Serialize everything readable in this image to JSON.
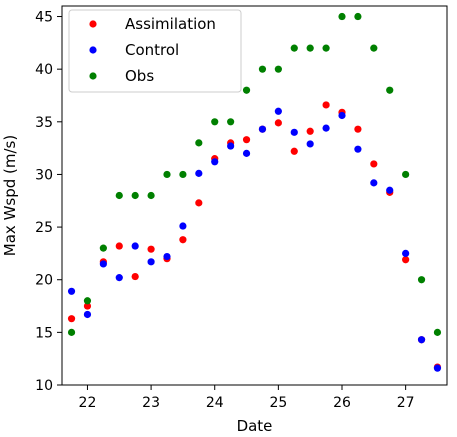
{
  "chart_data": {
    "type": "scatter",
    "title": "",
    "xlabel": "Date",
    "ylabel": "Max Wspd (m/s)",
    "xlim": [
      21.6,
      27.65
    ],
    "ylim": [
      10,
      46
    ],
    "xticks": [
      22,
      23,
      24,
      25,
      26,
      27
    ],
    "yticks": [
      10,
      15,
      20,
      25,
      30,
      35,
      40,
      45
    ],
    "grid": false,
    "legend_position": "top-left",
    "series": [
      {
        "name": "Assimilation",
        "color": "#ff0000",
        "points": [
          [
            21.75,
            16.3
          ],
          [
            22.0,
            17.5
          ],
          [
            22.25,
            21.7
          ],
          [
            22.5,
            23.2
          ],
          [
            22.75,
            20.3
          ],
          [
            23.0,
            22.9
          ],
          [
            23.25,
            22.0
          ],
          [
            23.5,
            23.8
          ],
          [
            23.75,
            27.3
          ],
          [
            24.0,
            31.5
          ],
          [
            24.25,
            33.0
          ],
          [
            24.5,
            33.3
          ],
          [
            24.75,
            34.3
          ],
          [
            25.0,
            34.9
          ],
          [
            25.25,
            32.2
          ],
          [
            25.5,
            34.1
          ],
          [
            25.75,
            36.6
          ],
          [
            26.0,
            35.9
          ],
          [
            26.25,
            34.3
          ],
          [
            26.5,
            31.0
          ],
          [
            26.75,
            28.3
          ],
          [
            27.0,
            21.9
          ],
          [
            27.25,
            14.3
          ],
          [
            27.5,
            11.7
          ]
        ]
      },
      {
        "name": "Control",
        "color": "#0000ff",
        "points": [
          [
            21.75,
            18.9
          ],
          [
            22.0,
            16.7
          ],
          [
            22.25,
            21.5
          ],
          [
            22.5,
            20.2
          ],
          [
            22.75,
            23.2
          ],
          [
            23.0,
            21.7
          ],
          [
            23.25,
            22.2
          ],
          [
            23.5,
            25.1
          ],
          [
            23.75,
            30.1
          ],
          [
            24.0,
            31.2
          ],
          [
            24.25,
            32.7
          ],
          [
            24.5,
            32.0
          ],
          [
            24.75,
            34.3
          ],
          [
            25.0,
            36.0
          ],
          [
            25.25,
            34.0
          ],
          [
            25.5,
            32.9
          ],
          [
            25.75,
            34.4
          ],
          [
            26.0,
            35.6
          ],
          [
            26.25,
            32.4
          ],
          [
            26.5,
            29.2
          ],
          [
            26.75,
            28.5
          ],
          [
            27.0,
            22.5
          ],
          [
            27.25,
            14.3
          ],
          [
            27.5,
            11.6
          ]
        ]
      },
      {
        "name": "Obs",
        "color": "#008000",
        "points": [
          [
            21.75,
            15.0
          ],
          [
            22.0,
            18.0
          ],
          [
            22.25,
            23.0
          ],
          [
            22.5,
            28.0
          ],
          [
            22.75,
            28.0
          ],
          [
            23.0,
            28.0
          ],
          [
            23.25,
            30.0
          ],
          [
            23.5,
            30.0
          ],
          [
            23.75,
            33.0
          ],
          [
            24.0,
            35.0
          ],
          [
            24.25,
            35.0
          ],
          [
            24.5,
            38.0
          ],
          [
            24.75,
            40.0
          ],
          [
            25.0,
            40.0
          ],
          [
            25.25,
            42.0
          ],
          [
            25.5,
            42.0
          ],
          [
            25.75,
            42.0
          ],
          [
            26.0,
            45.0
          ],
          [
            26.25,
            45.0
          ],
          [
            26.5,
            42.0
          ],
          [
            26.75,
            38.0
          ],
          [
            27.0,
            30.0
          ],
          [
            27.25,
            20.0
          ],
          [
            27.5,
            15.0
          ]
        ]
      }
    ]
  }
}
